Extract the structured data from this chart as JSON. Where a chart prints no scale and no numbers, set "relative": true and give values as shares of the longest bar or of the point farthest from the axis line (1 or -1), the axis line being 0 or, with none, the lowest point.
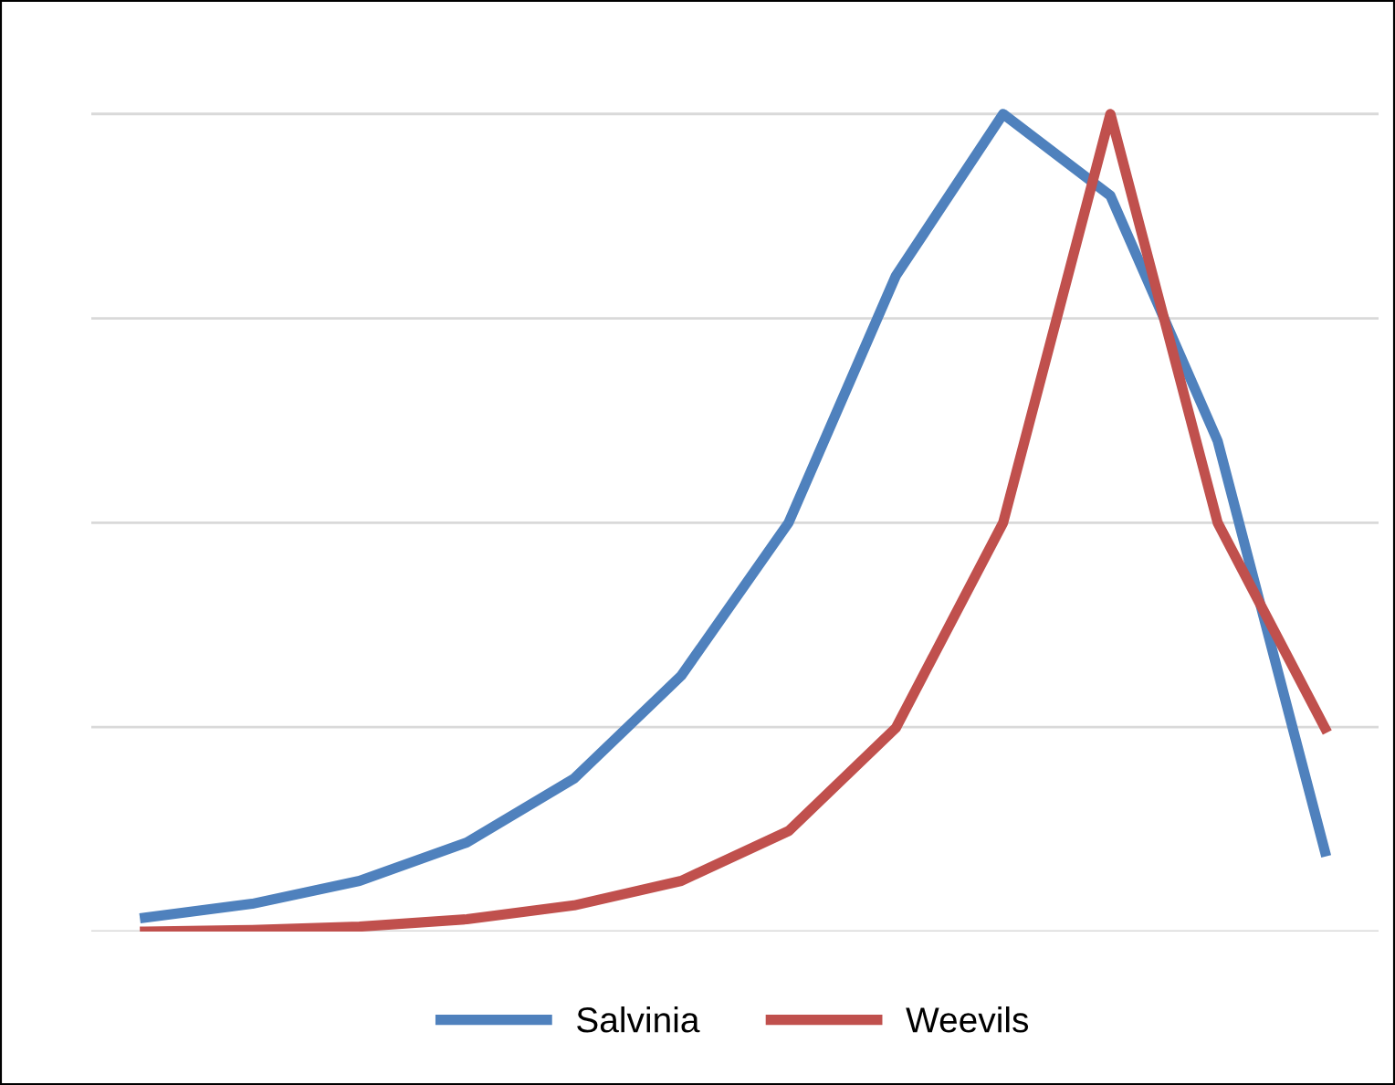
{
  "chart_data": {
    "type": "line",
    "relative": true,
    "grid": "y",
    "legend": "bottom",
    "marker": "none",
    "line_style": "solid",
    "categories": [
      null,
      null,
      null,
      null,
      null,
      null,
      null,
      null,
      null,
      null,
      null,
      null
    ],
    "series": [
      {
        "name": "Salvinia",
        "color": "#4f81bd",
        "values": [
          0.017,
          0.034,
          0.062,
          0.109,
          0.187,
          0.313,
          0.5,
          0.802,
          1,
          0.9,
          0.6,
          0.098
        ]
      },
      {
        "name": "Weevils",
        "color": "#c0504d",
        "values": [
          0,
          0.002,
          0.006,
          0.015,
          0.032,
          0.062,
          0.123,
          0.249,
          0.5,
          1,
          0.5,
          0.249
        ]
      }
    ]
  }
}
